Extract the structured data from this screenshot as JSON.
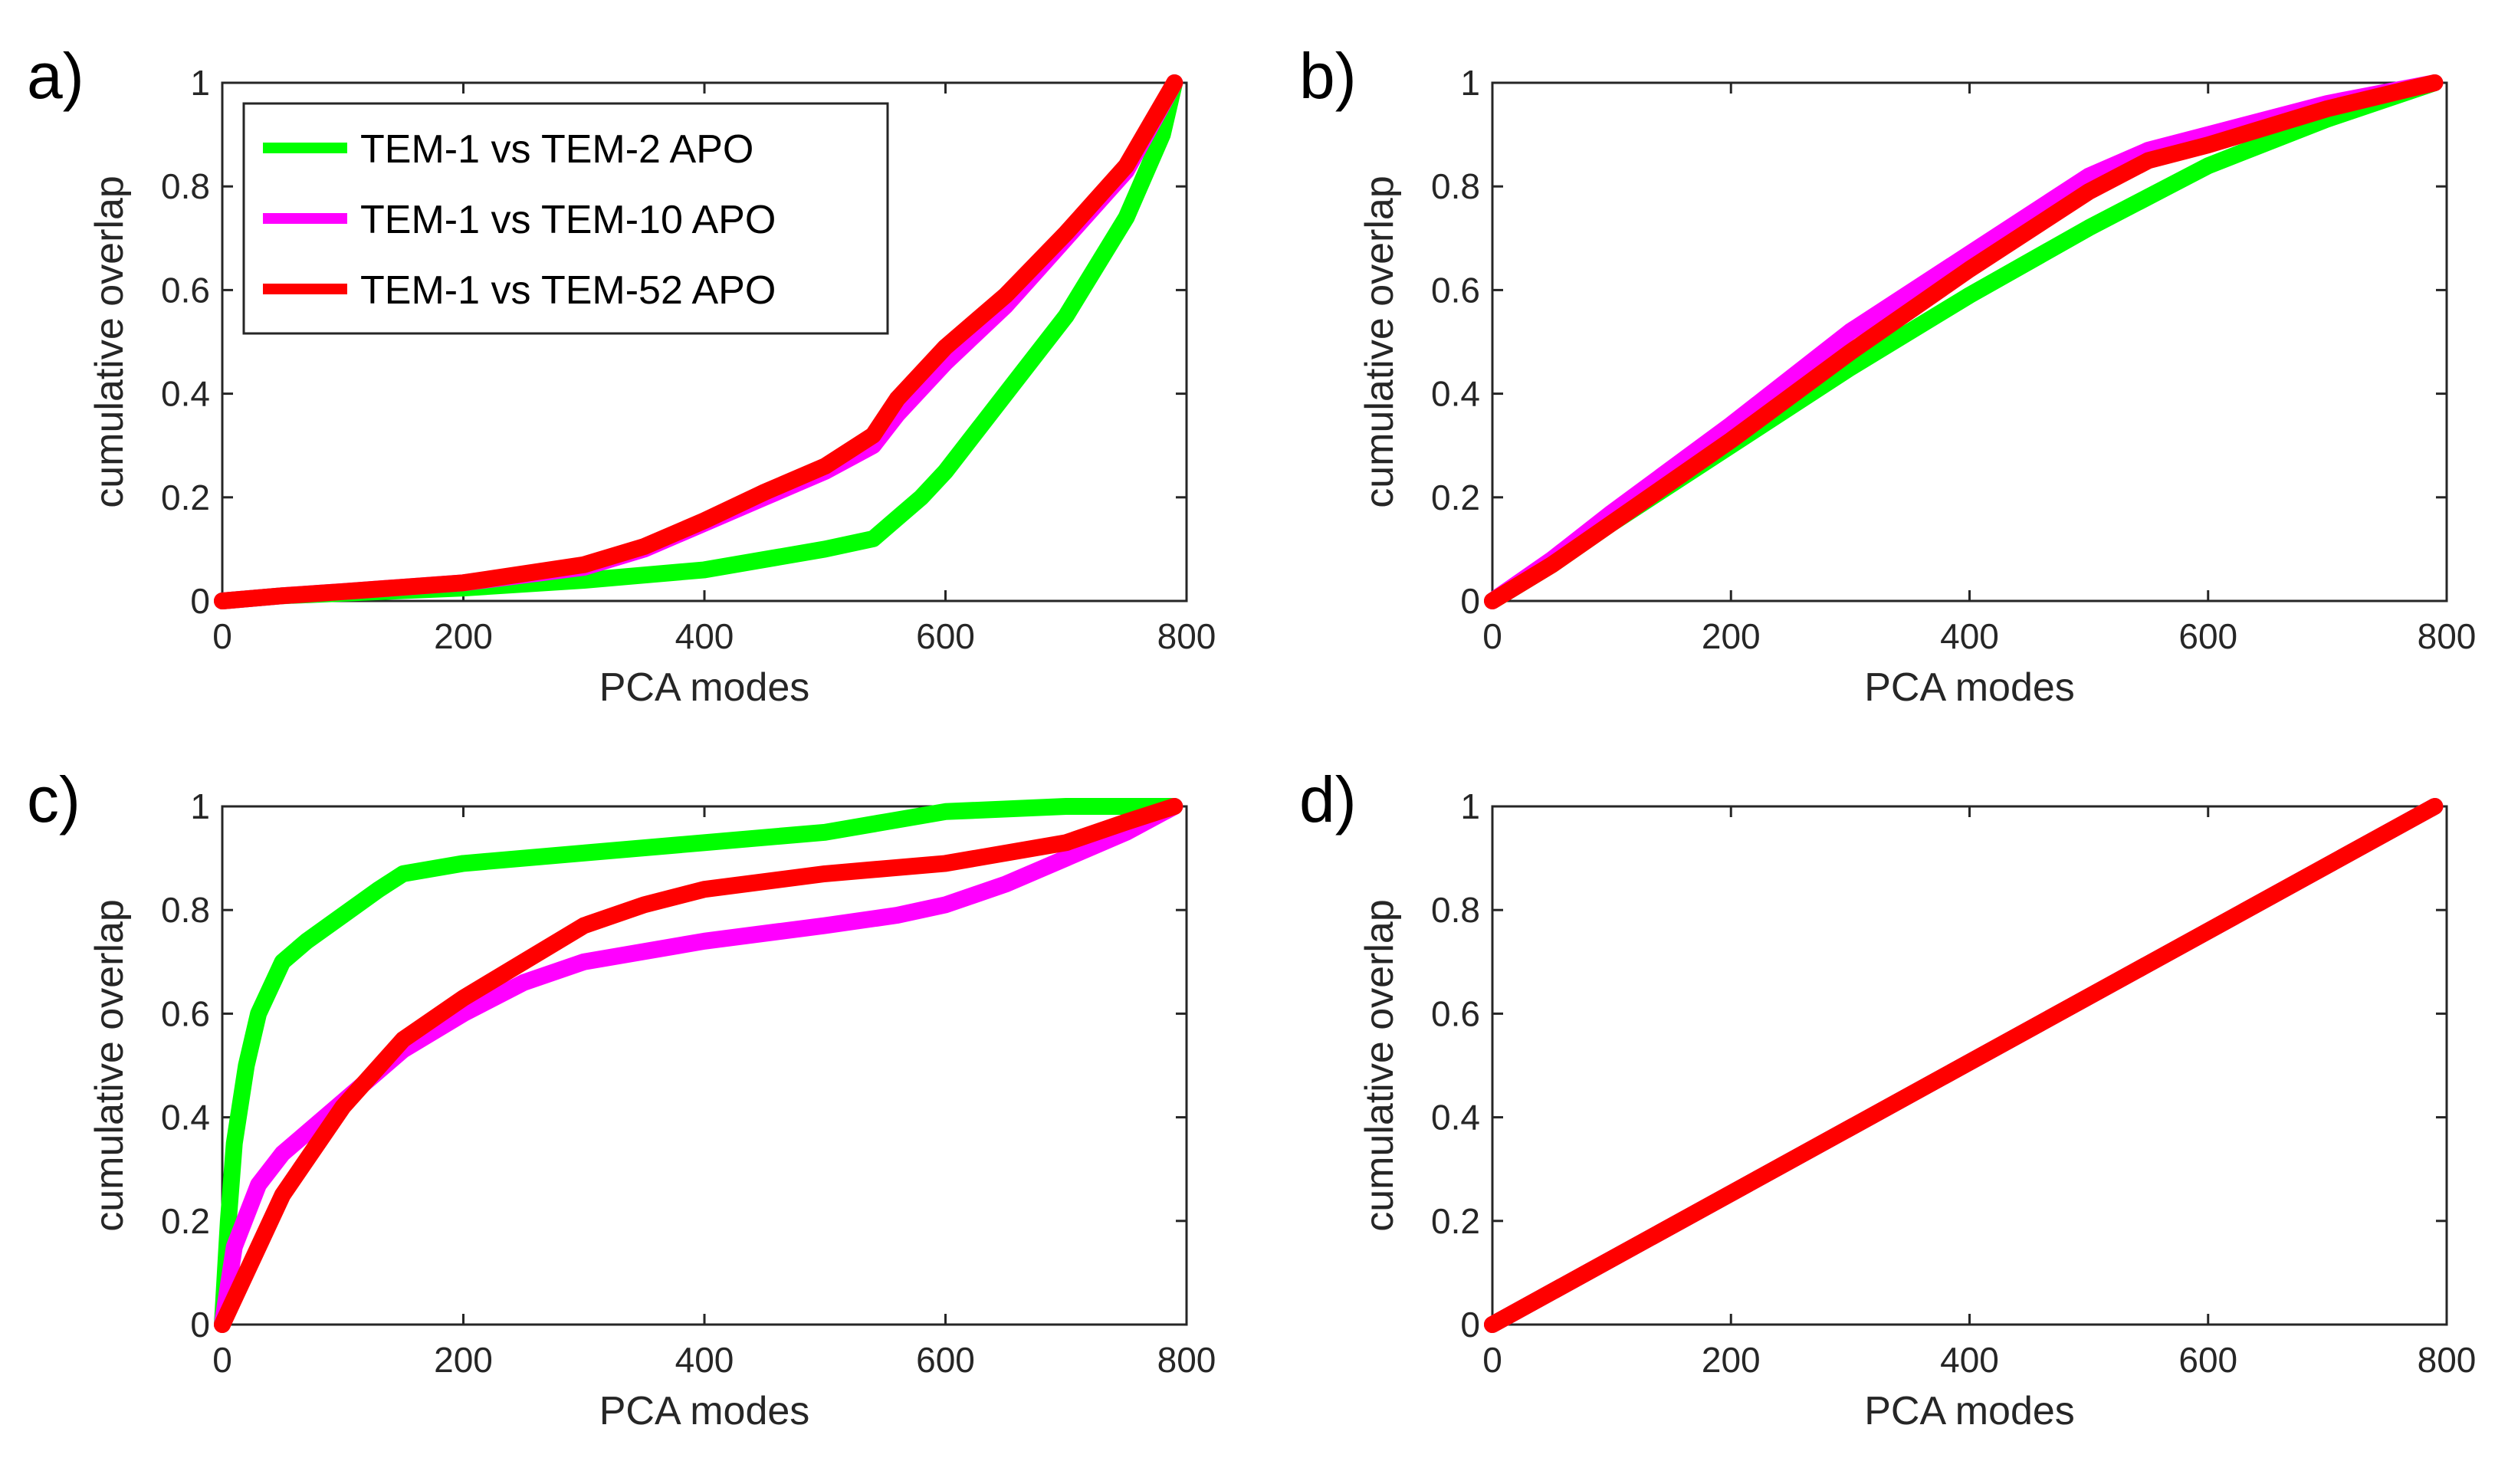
{
  "figure": {
    "series_colors": {
      "green": "#00ff00",
      "magenta": "#ff00ff",
      "red": "#ff0000"
    }
  },
  "chart_data": [
    {
      "type": "line",
      "panel_label": "a)",
      "xlabel": "PCA modes",
      "ylabel": "cumulative overlap",
      "xlim": [
        0,
        800
      ],
      "ylim": [
        0,
        1
      ],
      "xticks": [
        "0",
        "200",
        "400",
        "600",
        "800"
      ],
      "yticks": [
        "0",
        "0.2",
        "0.4",
        "0.6",
        "0.8",
        "1"
      ],
      "legend": {
        "position": "top-left",
        "entries": [
          "TEM-1 vs TEM-2 APO",
          "TEM-1 vs TEM-10 APO",
          "TEM-1 vs TEM-52 APO"
        ]
      },
      "series": [
        {
          "name": "TEM-1 vs TEM-2 APO",
          "color": "#00ff00",
          "x": [
            0,
            50,
            100,
            200,
            300,
            400,
            450,
            500,
            540,
            560,
            580,
            600,
            650,
            700,
            750,
            780,
            790
          ],
          "y": [
            0,
            0.01,
            0.015,
            0.025,
            0.04,
            0.06,
            0.08,
            0.1,
            0.12,
            0.16,
            0.2,
            0.25,
            0.4,
            0.55,
            0.74,
            0.9,
            1.0
          ]
        },
        {
          "name": "TEM-1 vs TEM-10 APO",
          "color": "#ff00ff",
          "x": [
            0,
            50,
            100,
            200,
            300,
            350,
            400,
            450,
            500,
            540,
            560,
            600,
            650,
            700,
            750,
            790
          ],
          "y": [
            0,
            0.01,
            0.018,
            0.035,
            0.065,
            0.1,
            0.15,
            0.2,
            0.25,
            0.3,
            0.36,
            0.46,
            0.57,
            0.7,
            0.83,
            1.0
          ]
        },
        {
          "name": "TEM-1 vs TEM-52 APO",
          "color": "#ff0000",
          "x": [
            0,
            50,
            100,
            200,
            300,
            350,
            400,
            450,
            500,
            540,
            560,
            600,
            650,
            700,
            750,
            790
          ],
          "y": [
            0,
            0.01,
            0.018,
            0.035,
            0.07,
            0.105,
            0.155,
            0.21,
            0.26,
            0.32,
            0.39,
            0.49,
            0.59,
            0.71,
            0.84,
            1.0
          ]
        }
      ]
    },
    {
      "type": "line",
      "panel_label": "b)",
      "xlabel": "PCA modes",
      "ylabel": "cumulative overlap",
      "xlim": [
        0,
        800
      ],
      "ylim": [
        0,
        1
      ],
      "xticks": [
        "0",
        "200",
        "400",
        "600",
        "800"
      ],
      "yticks": [
        "0",
        "0.2",
        "0.4",
        "0.6",
        "0.8",
        "1"
      ],
      "series": [
        {
          "name": "TEM-1 vs TEM-2 APO",
          "color": "#00ff00",
          "x": [
            0,
            50,
            100,
            200,
            300,
            400,
            500,
            600,
            700,
            790
          ],
          "y": [
            0,
            0.07,
            0.15,
            0.3,
            0.45,
            0.59,
            0.72,
            0.84,
            0.93,
            1.0
          ]
        },
        {
          "name": "TEM-1 vs TEM-10 APO",
          "color": "#ff00ff",
          "x": [
            0,
            50,
            100,
            200,
            300,
            400,
            500,
            550,
            600,
            700,
            790
          ],
          "y": [
            0,
            0.08,
            0.17,
            0.34,
            0.52,
            0.67,
            0.82,
            0.87,
            0.9,
            0.96,
            1.0
          ]
        },
        {
          "name": "TEM-1 vs TEM-52 APO",
          "color": "#ff0000",
          "x": [
            0,
            50,
            100,
            200,
            300,
            400,
            500,
            550,
            600,
            700,
            790
          ],
          "y": [
            0,
            0.07,
            0.15,
            0.31,
            0.48,
            0.64,
            0.79,
            0.85,
            0.88,
            0.95,
            1.0
          ]
        }
      ]
    },
    {
      "type": "line",
      "panel_label": "c)",
      "xlabel": "PCA modes",
      "ylabel": "cumulative overlap",
      "xlim": [
        0,
        800
      ],
      "ylim": [
        0,
        1
      ],
      "xticks": [
        "0",
        "200",
        "400",
        "600",
        "800"
      ],
      "yticks": [
        "0",
        "0.2",
        "0.4",
        "0.6",
        "0.8",
        "1"
      ],
      "series": [
        {
          "name": "TEM-1 vs TEM-2 APO",
          "color": "#00ff00",
          "x": [
            0,
            5,
            10,
            20,
            30,
            50,
            70,
            100,
            130,
            150,
            200,
            300,
            400,
            500,
            550,
            600,
            700,
            790
          ],
          "y": [
            0,
            0.2,
            0.35,
            0.5,
            0.6,
            0.7,
            0.74,
            0.79,
            0.84,
            0.87,
            0.89,
            0.91,
            0.93,
            0.95,
            0.97,
            0.99,
            1.0,
            1.0
          ]
        },
        {
          "name": "TEM-1 vs TEM-10 APO",
          "color": "#ff00ff",
          "x": [
            0,
            10,
            30,
            50,
            100,
            150,
            200,
            250,
            300,
            400,
            500,
            560,
            600,
            650,
            700,
            750,
            790
          ],
          "y": [
            0,
            0.15,
            0.27,
            0.33,
            0.43,
            0.53,
            0.6,
            0.66,
            0.7,
            0.74,
            0.77,
            0.79,
            0.81,
            0.85,
            0.9,
            0.95,
            1.0
          ]
        },
        {
          "name": "TEM-1 vs TEM-52 APO",
          "color": "#ff0000",
          "x": [
            0,
            10,
            30,
            50,
            100,
            150,
            200,
            250,
            300,
            350,
            400,
            500,
            600,
            700,
            750,
            790
          ],
          "y": [
            0,
            0.05,
            0.15,
            0.25,
            0.42,
            0.55,
            0.63,
            0.7,
            0.77,
            0.81,
            0.84,
            0.87,
            0.89,
            0.93,
            0.97,
            1.0
          ]
        }
      ]
    },
    {
      "type": "line",
      "panel_label": "d)",
      "xlabel": "PCA modes",
      "ylabel": "cumulative overlap",
      "xlim": [
        0,
        800
      ],
      "ylim": [
        0,
        1
      ],
      "xticks": [
        "0",
        "200",
        "400",
        "600",
        "800"
      ],
      "yticks": [
        "0",
        "0.2",
        "0.4",
        "0.6",
        "0.8",
        "1"
      ],
      "series": [
        {
          "name": "TEM-1 vs TEM-2 APO",
          "color": "#00ff00",
          "x": [
            0,
            790
          ],
          "y": [
            0,
            1.0
          ]
        },
        {
          "name": "TEM-1 vs TEM-10 APO",
          "color": "#ff00ff",
          "x": [
            0,
            790
          ],
          "y": [
            0,
            1.0
          ]
        },
        {
          "name": "TEM-1 vs TEM-52 APO",
          "color": "#ff0000",
          "x": [
            0,
            790
          ],
          "y": [
            0,
            1.0
          ]
        }
      ]
    }
  ]
}
